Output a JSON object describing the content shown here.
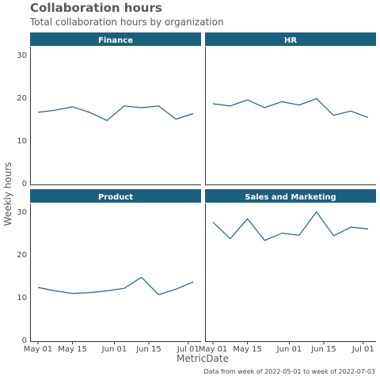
{
  "header": {
    "title": "Collaboration hours",
    "subtitle": "Total collaboration hours by organization"
  },
  "footer": {
    "caption": "Data from week of 2022-05-01 to week of 2022-07-03"
  },
  "chart_data": {
    "type": "line",
    "title": "Collaboration hours",
    "subtitle": "Total collaboration hours by organization",
    "xlabel": "MetricDate",
    "ylabel": "Weekly hours",
    "x": [
      "2022-05-01",
      "2022-05-08",
      "2022-05-15",
      "2022-05-22",
      "2022-05-29",
      "2022-06-05",
      "2022-06-12",
      "2022-06-19",
      "2022-06-26",
      "2022-07-03"
    ],
    "x_ticks": [
      "2022-05-01",
      "2022-05-15",
      "2022-06-01",
      "2022-06-15",
      "2022-07-01"
    ],
    "x_tick_labels": [
      "May 01",
      "May 15",
      "Jun 01",
      "Jun 15",
      "Jul 01"
    ],
    "ylim": [
      0,
      30
    ],
    "y_ticks": [
      0,
      10,
      20,
      30
    ],
    "facets": [
      {
        "name": "Finance",
        "values": [
          16.5,
          17.0,
          17.8,
          16.5,
          14.6,
          18.0,
          17.6,
          18.0,
          14.9,
          16.2
        ]
      },
      {
        "name": "HR",
        "values": [
          18.5,
          18.0,
          19.4,
          17.6,
          19.0,
          18.2,
          19.7,
          15.8,
          16.8,
          15.3
        ]
      },
      {
        "name": "Product",
        "values": [
          12.2,
          11.4,
          10.8,
          11.0,
          11.4,
          12.0,
          14.6,
          10.5,
          11.8,
          13.5
        ]
      },
      {
        "name": "Sales and Marketing",
        "values": [
          27.5,
          23.6,
          28.3,
          23.2,
          24.9,
          24.4,
          29.9,
          24.3,
          26.3,
          25.9
        ]
      }
    ],
    "grid": false,
    "colors": {
      "strip_fill": "#1c6080",
      "strip_text": "#ffffff",
      "line": "#1c6080",
      "axis": "#333333",
      "tick_text": "#444444"
    }
  }
}
